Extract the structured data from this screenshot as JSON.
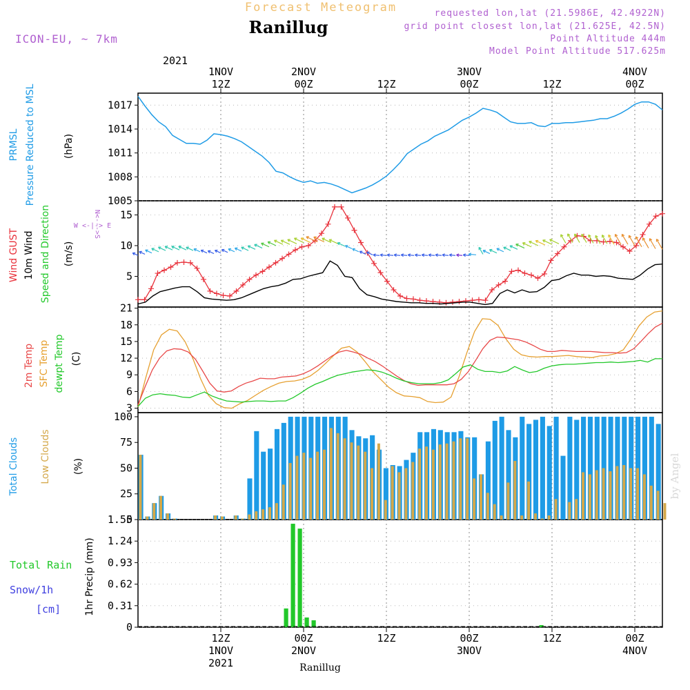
{
  "header": {
    "title_top": "Forecast Meteogram",
    "location": "Ranillug",
    "model": "ICON-EU, ~ 7km",
    "requested": "requested lon,lat (21.5986E, 42.4922N)",
    "grid_point": "grid point closest lon,lat (21.625E, 42.5N)",
    "point_altitude": "Point Altitude 444m",
    "model_altitude": "Model Point Altitude 517.625m",
    "year_top": "2021",
    "watermark": "by Angel",
    "bottom_label": "Ranillug"
  },
  "colors": {
    "pressure": "#1e9be6",
    "gust": "#e8303a",
    "wind10m": "#000000",
    "temp2m": "#e84848",
    "sfc_temp": "#e6a030",
    "dewpt": "#22c82a",
    "total_clouds": "#1e9be6",
    "low_clouds": "#d4a84a",
    "rain": "#22c82a",
    "purple": "#b060d0",
    "orange_title": "#f0c070"
  },
  "time_axis": {
    "top_ticks": [
      {
        "line1": "1NOV",
        "line2": "12Z",
        "t": 12
      },
      {
        "line1": "2NOV",
        "line2": "00Z",
        "t": 24
      },
      {
        "line1": "",
        "line2": "12Z",
        "t": 36
      },
      {
        "line1": "3NOV",
        "line2": "00Z",
        "t": 48
      },
      {
        "line1": "",
        "line2": "12Z",
        "t": 60
      },
      {
        "line1": "4NOV",
        "line2": "00Z",
        "t": 72
      }
    ],
    "bottom_ticks": [
      {
        "line1": "12Z",
        "line2": "1NOV",
        "line3": "2021",
        "t": 12
      },
      {
        "line1": "00Z",
        "line2": "2NOV",
        "line3": "",
        "t": 24
      },
      {
        "line1": "12Z",
        "line2": "",
        "line3": "",
        "t": 36
      },
      {
        "line1": "00Z",
        "line2": "3NOV",
        "line3": "",
        "t": 48
      },
      {
        "line1": "12Z",
        "line2": "",
        "line3": "",
        "t": 60
      },
      {
        "line1": "00Z",
        "line2": "4NOV",
        "line3": "",
        "t": 72
      }
    ]
  },
  "panel_labels": {
    "pressure": {
      "l1": "PRMSL",
      "l2": "Pressure Reduced to MSL",
      "unit": "(hPa)"
    },
    "wind": {
      "l1": "Wind GUST",
      "l2": "10m Wind",
      "l3": "Speed and Direction",
      "unit": "(m/s)",
      "compass_ns": "N<--->S",
      "compass_we": "W <-|-> E"
    },
    "temp": {
      "l1": "2m Temp",
      "l2": "SFC Temp",
      "l3": "dewpt Temp",
      "unit": "(C)"
    },
    "clouds": {
      "l1": "Total Clouds",
      "l2": "Low Clouds",
      "unit": "(%)"
    },
    "precip": {
      "l1": "Total Rain",
      "l2": "Snow/1h",
      "l3": "[cm]",
      "unit": "1hr Precip (mm)"
    }
  },
  "chart_data": [
    {
      "type": "line",
      "panel": "pressure",
      "t_range": [
        0,
        76
      ],
      "ylim": [
        1005,
        1018.5
      ],
      "yticks": [
        "1005",
        "1008",
        "1011",
        "1014",
        "1017"
      ],
      "series": [
        {
          "values": [
            1018.1,
            1016.9,
            1015.8,
            1014.9,
            1014.3,
            1013.2,
            1012.7,
            1012.2,
            1012.2,
            1012.1,
            1012.6,
            1013.4,
            1013.3,
            1013.1,
            1012.8,
            1012.4,
            1011.8,
            1011.2,
            1010.6,
            1009.8,
            1008.7,
            1008.5,
            1008.0,
            1007.6,
            1007.3,
            1007.5,
            1007.2,
            1007.3,
            1007.1,
            1006.8,
            1006.4,
            1006.0,
            1006.3,
            1006.6,
            1007.0,
            1007.5,
            1008.1,
            1008.9,
            1009.8,
            1010.9,
            1011.5,
            1012.1,
            1012.5,
            1013.1,
            1013.5,
            1013.9,
            1014.5,
            1015.1,
            1015.5,
            1016.0,
            1016.6,
            1016.4,
            1016.1,
            1015.5,
            1014.9,
            1014.7,
            1014.7,
            1014.8,
            1014.4,
            1014.3,
            1014.7,
            1014.7,
            1014.8,
            1014.8,
            1014.9,
            1015.0,
            1015.1,
            1015.3,
            1015.3,
            1015.6,
            1016.0,
            1016.5,
            1017.1,
            1017.4,
            1017.4,
            1017.1,
            1016.4
          ]
        }
      ]
    },
    {
      "type": "line",
      "panel": "wind",
      "t_range": [
        0,
        76
      ],
      "ylim": [
        0,
        17.3
      ],
      "yticks": [
        "5",
        "10",
        "15"
      ],
      "series": [
        {
          "name": "Wind GUST",
          "values": [
            1.2,
            1.2,
            3.0,
            5.5,
            6.0,
            6.5,
            7.2,
            7.3,
            7.2,
            6.3,
            4.5,
            2.6,
            2.2,
            1.9,
            1.8,
            2.6,
            3.6,
            4.5,
            5.2,
            5.8,
            6.5,
            7.2,
            7.9,
            8.6,
            9.3,
            9.8,
            10.0,
            10.8,
            12.0,
            13.5,
            16.3,
            16.3,
            14.5,
            12.5,
            10.5,
            8.8,
            7.1,
            5.6,
            4.2,
            2.8,
            1.8,
            1.4,
            1.3,
            1.1,
            1.0,
            0.9,
            0.8,
            0.7,
            0.8,
            0.9,
            1.0,
            1.1,
            1.2,
            1.1,
            2.8,
            3.6,
            4.2,
            5.8,
            6.0,
            5.5,
            5.2,
            4.7,
            5.4,
            7.6,
            8.7,
            9.8,
            10.8,
            11.6,
            11.5,
            10.8,
            10.8,
            10.6,
            10.7,
            10.5,
            9.8,
            9.1,
            10.0,
            11.8,
            13.5,
            14.8,
            15.2
          ]
        },
        {
          "name": "10m Wind",
          "values": [
            0.5,
            0.8,
            1.8,
            2.5,
            2.8,
            3.1,
            3.3,
            3.3,
            2.5,
            1.5,
            1.3,
            1.2,
            1.1,
            1.2,
            1.5,
            2.0,
            2.5,
            3.0,
            3.3,
            3.5,
            3.9,
            4.5,
            4.6,
            5.0,
            5.3,
            5.6,
            7.5,
            6.8,
            5.0,
            4.8,
            3.0,
            2.0,
            1.7,
            1.3,
            1.1,
            0.9,
            0.8,
            0.7,
            0.7,
            0.6,
            0.6,
            0.5,
            0.6,
            0.7,
            0.8,
            0.8,
            0.6,
            0.4,
            0.6,
            2.2,
            2.8,
            2.3,
            2.8,
            2.4,
            2.5,
            3.2,
            4.3,
            4.5,
            5.1,
            5.5,
            5.2,
            5.2,
            5.0,
            5.1,
            5.0,
            4.7,
            4.6,
            4.5,
            5.2,
            6.2,
            6.9,
            7.0
          ]
        },
        {
          "name": "Speed and Direction",
          "values": [
            8.4,
            8.6,
            8.8,
            9.0,
            9.2,
            9.3,
            9.3,
            9.3,
            9.2,
            9.0,
            8.8,
            8.7,
            8.8,
            8.9,
            9.0,
            9.1,
            9.2,
            9.4,
            9.6,
            9.8,
            10.0,
            10.2,
            10.2,
            10.3,
            10.5,
            10.5,
            10.6,
            10.6,
            10.5,
            10.3,
            9.9,
            9.5,
            9.0,
            8.6,
            8.5,
            8.4,
            8.4,
            8.4,
            8.4,
            8.4,
            8.4,
            8.4,
            8.4,
            8.4,
            8.4,
            8.4,
            8.4,
            8.4,
            8.4,
            8.5,
            8.6,
            8.7,
            8.8,
            9.0,
            9.2,
            9.4,
            9.6,
            9.8,
            10.0,
            10.1,
            10.2,
            10.3,
            10.4,
            10.5,
            10.5,
            10.5,
            10.4,
            10.3,
            10.3,
            10.2,
            10.2,
            10.2,
            10.0,
            9.8,
            9.6,
            9.5,
            9.4
          ]
        }
      ]
    },
    {
      "type": "line",
      "panel": "temp",
      "t_range": [
        0,
        76
      ],
      "ylim": [
        2.2,
        21.2
      ],
      "yticks": [
        "3",
        "6",
        "9",
        "12",
        "15",
        "18",
        "21"
      ],
      "series": [
        {
          "name": "2m Temp",
          "values": [
            3.6,
            6.9,
            9.9,
            12.0,
            13.3,
            13.7,
            13.6,
            13.1,
            11.8,
            9.7,
            7.5,
            6.1,
            5.9,
            6.1,
            6.9,
            7.5,
            7.9,
            8.4,
            8.3,
            8.3,
            8.6,
            8.7,
            8.8,
            9.2,
            9.8,
            10.6,
            11.5,
            12.4,
            13.1,
            13.4,
            13.1,
            12.7,
            12.0,
            11.4,
            10.6,
            9.7,
            8.8,
            8.0,
            7.4,
            7.1,
            7.2,
            7.2,
            7.2,
            7.2,
            7.4,
            8.2,
            9.6,
            11.6,
            13.7,
            15.2,
            15.8,
            15.7,
            15.5,
            15.3,
            14.9,
            14.3,
            13.6,
            13.2,
            13.2,
            13.4,
            13.3,
            13.2,
            13.2,
            13.2,
            13.1,
            13.0,
            13.0,
            12.9,
            13.0,
            13.7,
            15.0,
            16.4,
            17.6,
            18.3
          ]
        },
        {
          "name": "SFC Temp",
          "values": [
            3.2,
            8.5,
            13.5,
            16.2,
            17.2,
            16.9,
            15.0,
            12.0,
            8.3,
            5.3,
            3.8,
            3.1,
            3.0,
            3.8,
            4.4,
            5.3,
            6.2,
            6.9,
            7.5,
            7.8,
            7.9,
            8.2,
            8.8,
            9.8,
            11.1,
            12.5,
            13.8,
            14.1,
            13.1,
            11.4,
            9.6,
            8.2,
            6.8,
            5.8,
            5.2,
            5.1,
            4.9,
            4.2,
            4.0,
            4.1,
            5.0,
            8.6,
            12.9,
            16.8,
            19.1,
            19.0,
            17.9,
            15.5,
            13.6,
            12.6,
            12.3,
            12.2,
            12.3,
            12.3,
            12.4,
            12.5,
            12.3,
            12.2,
            12.1,
            12.4,
            12.5,
            12.8,
            13.5,
            15.5,
            17.8,
            19.4,
            20.3,
            20.5
          ]
        },
        {
          "name": "dewpt Temp",
          "values": [
            3.3,
            4.8,
            5.4,
            5.6,
            5.4,
            5.3,
            5.0,
            4.9,
            5.4,
            5.9,
            5.2,
            4.7,
            4.3,
            4.2,
            4.1,
            4.2,
            4.3,
            4.3,
            4.2,
            4.3,
            4.3,
            4.9,
            5.7,
            6.6,
            7.3,
            7.8,
            8.4,
            8.9,
            9.2,
            9.5,
            9.7,
            9.9,
            9.8,
            9.5,
            9.0,
            8.4,
            7.9,
            7.6,
            7.4,
            7.4,
            7.4,
            7.6,
            8.1,
            9.2,
            10.4,
            10.8,
            10.0,
            9.6,
            9.6,
            9.4,
            9.7,
            10.5,
            9.9,
            9.4,
            9.6,
            10.2,
            10.6,
            10.8,
            10.9,
            10.9,
            11.0,
            11.1,
            11.2,
            11.2,
            11.3,
            11.2,
            11.3,
            11.4,
            11.6,
            11.3,
            11.9,
            11.9
          ]
        }
      ]
    },
    {
      "type": "bar",
      "panel": "clouds",
      "t_range": [
        0,
        76
      ],
      "ylim": [
        0,
        104
      ],
      "yticks": [
        "0",
        "25",
        "50",
        "75",
        "100"
      ],
      "series": [
        {
          "name": "Total Clouds",
          "values": [
            63,
            3,
            16,
            23,
            6,
            1,
            0,
            0,
            0,
            0,
            0,
            4,
            3,
            0,
            4,
            1,
            40,
            86,
            66,
            69,
            88,
            94,
            100,
            100,
            100,
            100,
            100,
            100,
            100,
            100,
            100,
            87,
            81,
            79,
            82,
            68,
            50,
            53,
            52,
            58,
            65,
            85,
            85,
            88,
            87,
            85,
            85,
            86,
            80,
            80,
            44,
            76,
            96,
            100,
            87,
            80,
            100,
            93,
            97,
            100,
            91,
            100,
            62,
            100,
            97,
            100,
            100,
            100,
            100,
            100,
            100,
            100,
            100,
            100,
            100,
            100,
            93
          ]
        },
        {
          "name": "Low Clouds",
          "values": [
            63,
            3,
            16,
            23,
            6,
            1,
            0,
            0,
            0,
            0,
            0,
            4,
            3,
            0,
            4,
            1,
            5,
            8,
            10,
            12,
            16,
            34,
            55,
            62,
            65,
            60,
            66,
            68,
            89,
            84,
            79,
            75,
            72,
            66,
            50,
            74,
            19,
            52,
            46,
            50,
            56,
            69,
            71,
            68,
            73,
            74,
            76,
            79,
            79,
            40,
            44,
            26,
            15,
            4,
            36,
            57,
            4,
            37,
            6,
            1,
            4,
            20,
            0,
            17,
            20,
            46,
            44,
            48,
            50,
            47,
            52,
            53,
            50,
            50,
            44,
            33,
            28,
            16
          ]
        }
      ]
    },
    {
      "type": "bar",
      "panel": "precip",
      "t_range": [
        0,
        76
      ],
      "ylim": [
        0,
        1.55
      ],
      "yticks": [
        "0",
        "0.31",
        "0.62",
        "0.93",
        "1.24",
        "1.55"
      ],
      "series": [
        {
          "name": "Total Rain",
          "values": [
            0,
            0,
            0,
            0,
            0,
            0,
            0,
            0,
            0,
            0,
            0,
            0,
            0,
            0,
            0,
            0,
            0,
            0,
            0,
            0,
            0,
            0.27,
            1.49,
            1.42,
            0.14,
            0.1,
            0,
            0,
            0,
            0,
            0,
            0,
            0,
            0,
            0,
            0,
            0,
            0,
            0,
            0,
            0,
            0,
            0,
            0,
            0,
            0,
            0,
            0,
            0,
            0,
            0,
            0,
            0,
            0,
            0,
            0,
            0,
            0,
            0.03,
            0,
            0,
            0,
            0,
            0,
            0,
            0,
            0,
            0,
            0,
            0,
            0,
            0,
            0,
            0,
            0,
            0
          ]
        }
      ]
    }
  ]
}
